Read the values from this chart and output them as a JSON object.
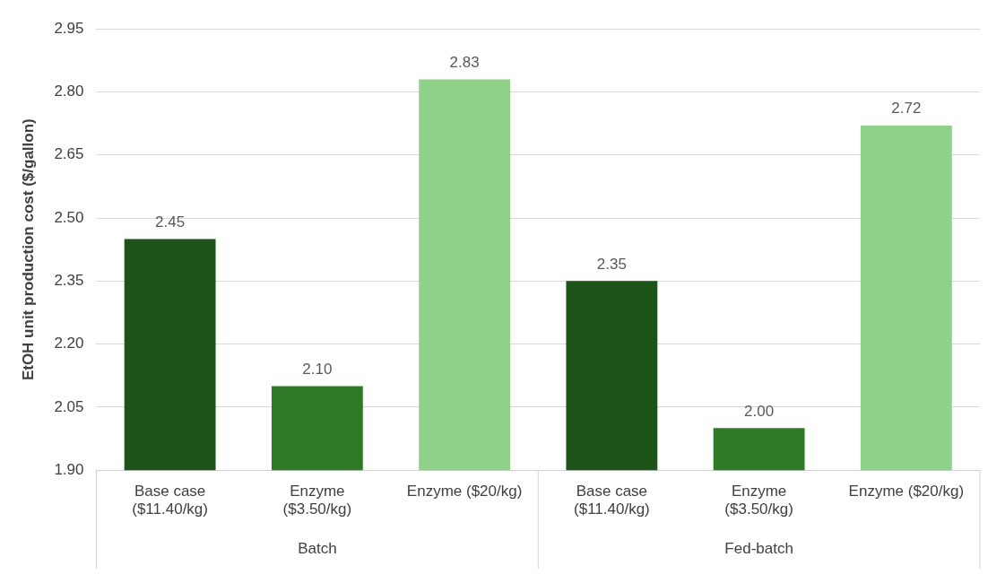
{
  "chart_data": {
    "type": "bar",
    "ylabel": "EtOH unit production cost ($/gallon)",
    "categories": [
      "Base case ($11.40/kg)",
      "Enzyme ($3.50/kg)",
      "Enzyme ($20/kg)",
      "Base case ($11.40/kg)",
      "Enzyme ($3.50/kg)",
      "Enzyme ($20/kg)"
    ],
    "values": [
      2.45,
      2.1,
      2.83,
      2.35,
      2.0,
      2.72
    ],
    "value_labels": [
      "2.45",
      "2.10",
      "2.83",
      "2.35",
      "2.00",
      "2.72"
    ],
    "colors": [
      "#1e5319",
      "#2f7a26",
      "#8fd188",
      "#1e5319",
      "#2f7a26",
      "#8fd188"
    ],
    "ylim": [
      1.9,
      2.95
    ],
    "yticks": [
      {
        "value": 1.9,
        "label": "1.90"
      },
      {
        "value": 2.05,
        "label": "2.05"
      },
      {
        "value": 2.2,
        "label": "2.20"
      },
      {
        "value": 2.35,
        "label": "2.35"
      },
      {
        "value": 2.5,
        "label": "2.50"
      },
      {
        "value": 2.65,
        "label": "2.65"
      },
      {
        "value": 2.8,
        "label": "2.80"
      },
      {
        "value": 2.95,
        "label": "2.95"
      }
    ],
    "annotations": [
      "Batch",
      "Fed-batch"
    ],
    "grid": "y",
    "legend": false
  }
}
